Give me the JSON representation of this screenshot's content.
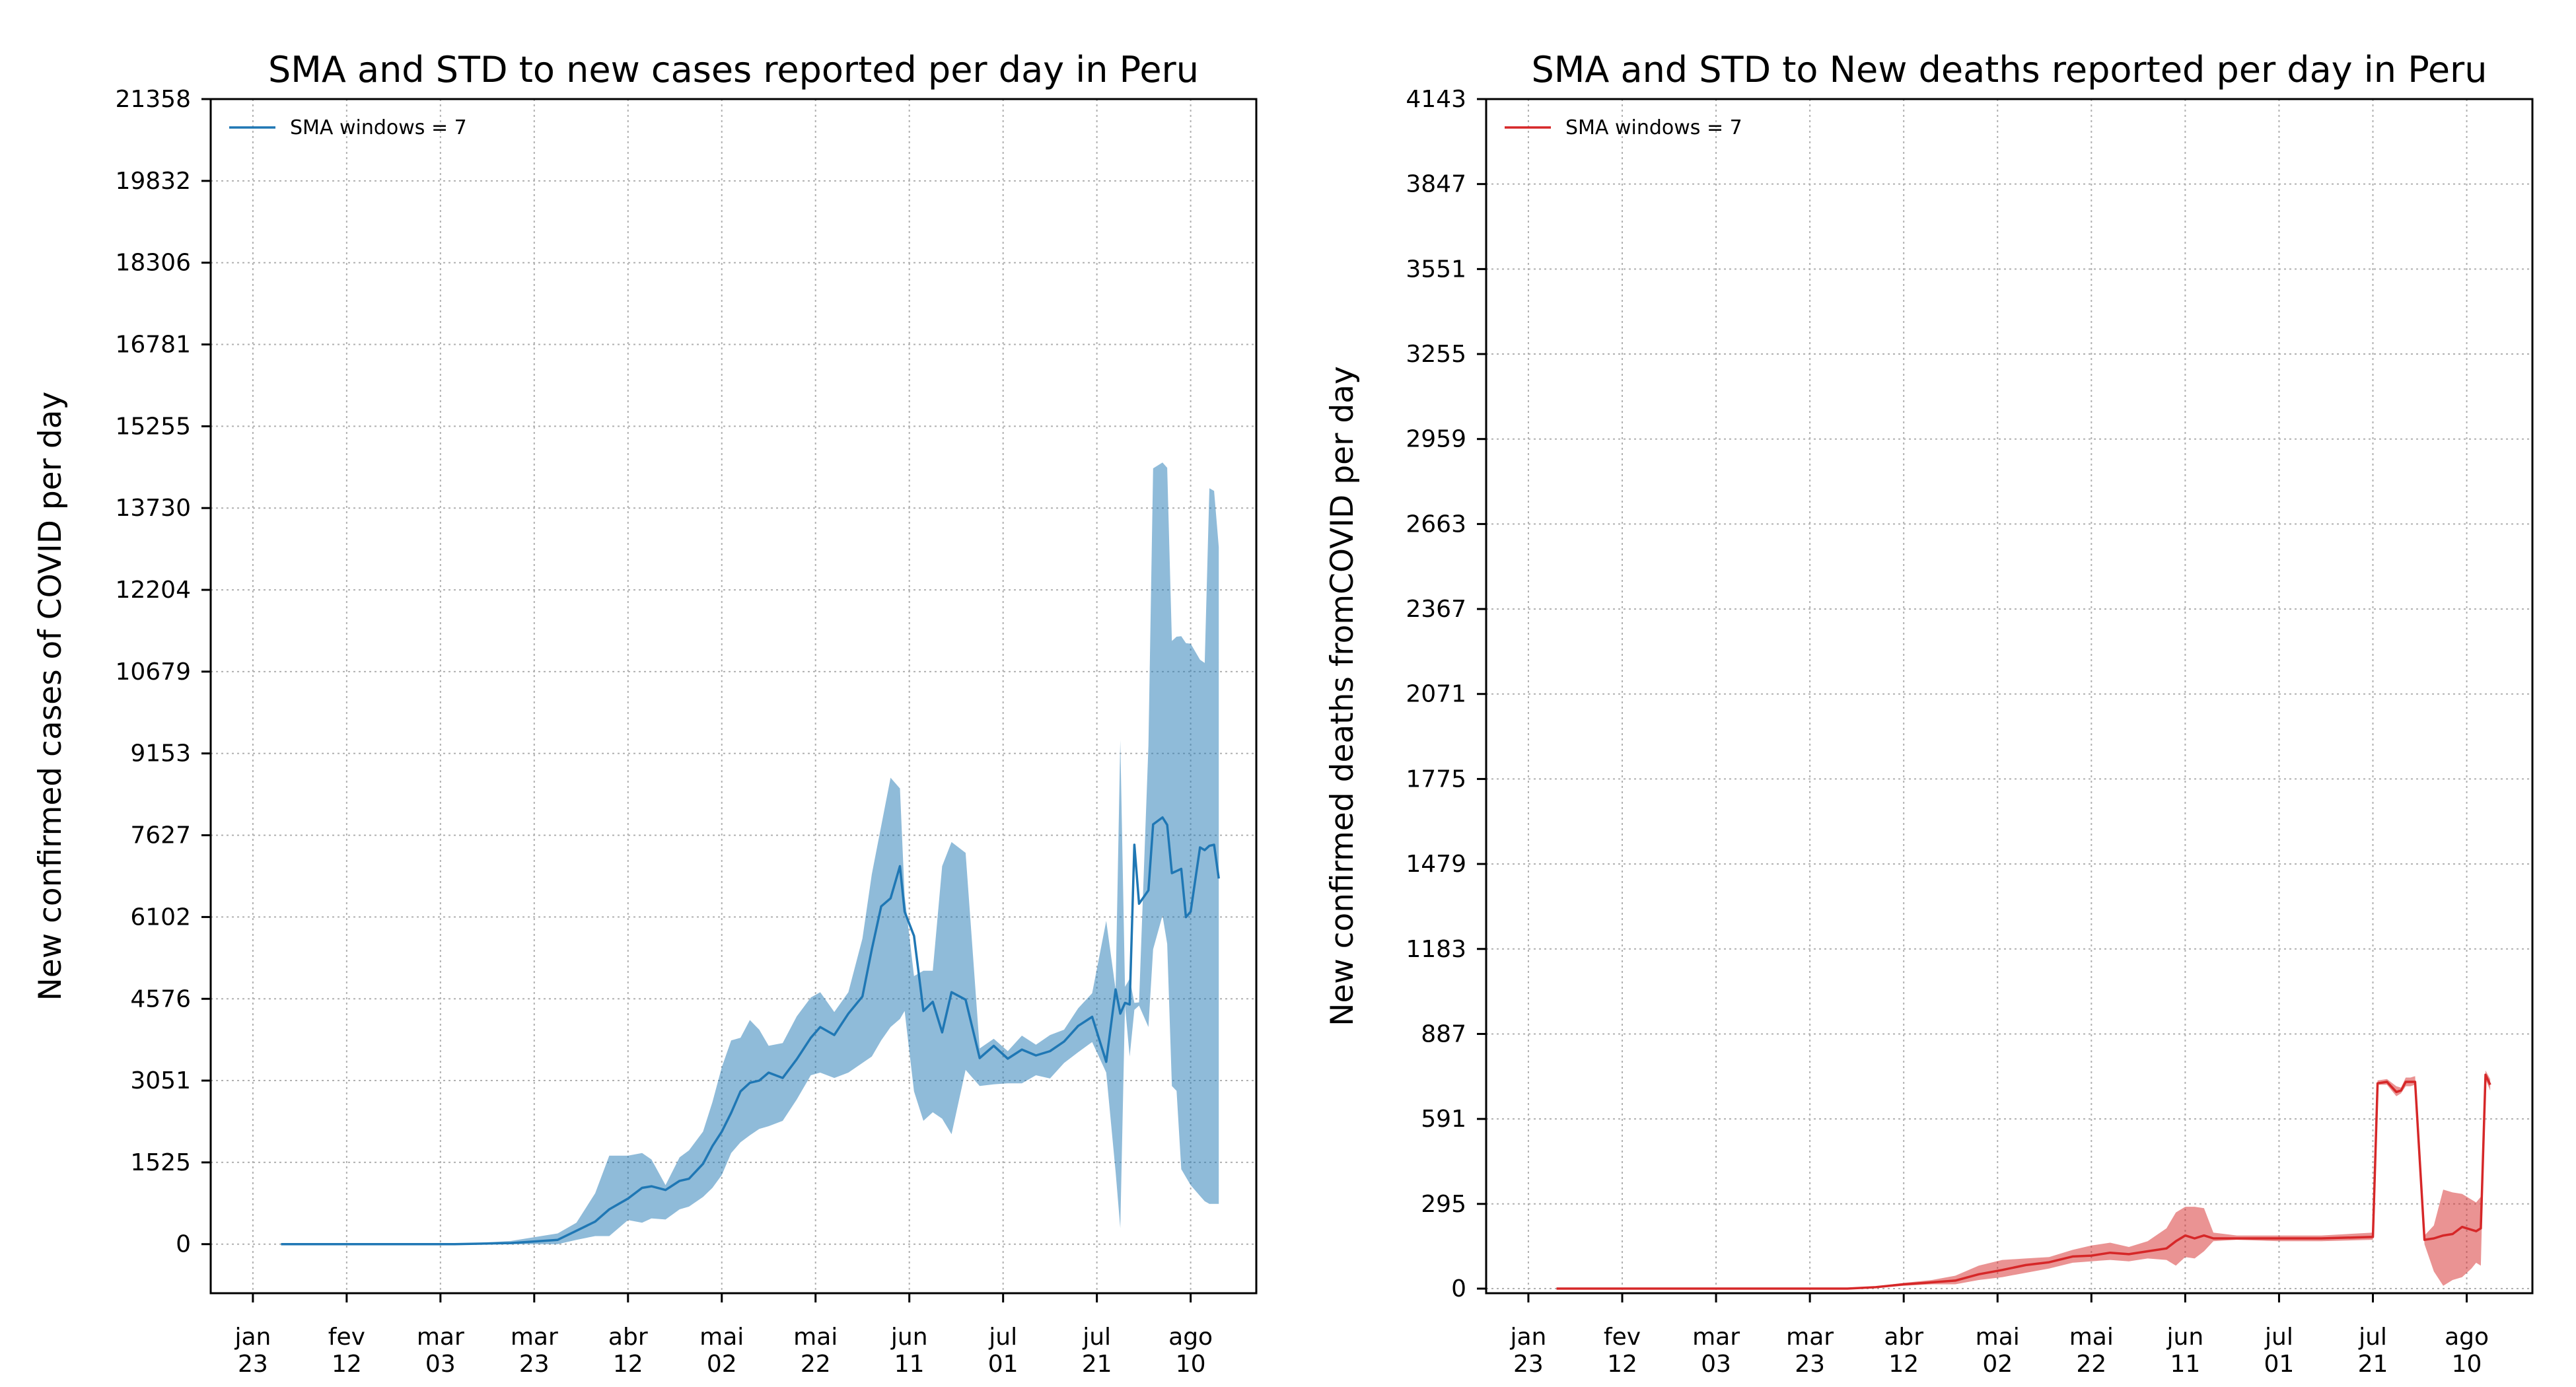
{
  "chart_data": [
    {
      "type": "line",
      "title": "SMA and STD to new cases reported per day in Peru",
      "xlabel": "",
      "ylabel": "New confirmed cases of COVID per day",
      "legend": "upper-left",
      "legend_entries": [
        "SMA windows = 7"
      ],
      "grid": true,
      "color": "#1f77b4",
      "band_color": "#1f77b4",
      "band_alpha": 0.5,
      "x_axis": "date",
      "xlim": [
        "2020-01-14",
        "2020-08-24"
      ],
      "ylim": [
        -915,
        21358
      ],
      "yticks": [
        0,
        1525,
        3051,
        4576,
        6102,
        7627,
        9153,
        10679,
        12204,
        13730,
        15255,
        16781,
        18306,
        19832,
        21358
      ],
      "xticks": [
        {
          "date": "2020-01-23",
          "line1": "jan",
          "line2": "23"
        },
        {
          "date": "2020-02-12",
          "line1": "fev",
          "line2": "12"
        },
        {
          "date": "2020-03-03",
          "line1": "mar",
          "line2": "03"
        },
        {
          "date": "2020-03-23",
          "line1": "mar",
          "line2": "23"
        },
        {
          "date": "2020-04-12",
          "line1": "abr",
          "line2": "12"
        },
        {
          "date": "2020-05-02",
          "line1": "mai",
          "line2": "02"
        },
        {
          "date": "2020-05-22",
          "line1": "mai",
          "line2": "22"
        },
        {
          "date": "2020-06-11",
          "line1": "jun",
          "line2": "11"
        },
        {
          "date": "2020-07-01",
          "line1": "jul",
          "line2": "01"
        },
        {
          "date": "2020-07-21",
          "line1": "jul",
          "line2": "21"
        },
        {
          "date": "2020-08-10",
          "line1": "ago",
          "line2": "10"
        }
      ],
      "series": [
        {
          "name": "SMA windows = 7",
          "x": [
            "2020-01-29",
            "2020-02-15",
            "2020-03-06",
            "2020-03-18",
            "2020-03-28",
            "2020-04-01",
            "2020-04-05",
            "2020-04-08",
            "2020-04-12",
            "2020-04-15",
            "2020-04-17",
            "2020-04-20",
            "2020-04-23",
            "2020-04-25",
            "2020-04-28",
            "2020-04-30",
            "2020-05-02",
            "2020-05-04",
            "2020-05-06",
            "2020-05-08",
            "2020-05-10",
            "2020-05-12",
            "2020-05-15",
            "2020-05-18",
            "2020-05-21",
            "2020-05-23",
            "2020-05-26",
            "2020-05-29",
            "2020-06-01",
            "2020-06-03",
            "2020-06-05",
            "2020-06-07",
            "2020-06-09",
            "2020-06-10",
            "2020-06-12",
            "2020-06-14",
            "2020-06-16",
            "2020-06-18",
            "2020-06-20",
            "2020-06-23",
            "2020-06-26",
            "2020-06-29",
            "2020-07-02",
            "2020-07-05",
            "2020-07-08",
            "2020-07-11",
            "2020-07-14",
            "2020-07-17",
            "2020-07-20",
            "2020-07-23",
            "2020-07-25",
            "2020-07-26",
            "2020-07-27",
            "2020-07-28",
            "2020-07-29",
            "2020-07-30",
            "2020-08-01",
            "2020-08-02",
            "2020-08-04",
            "2020-08-05",
            "2020-08-06",
            "2020-08-07",
            "2020-08-08",
            "2020-08-09",
            "2020-08-10",
            "2020-08-12",
            "2020-08-13",
            "2020-08-14",
            "2020-08-15",
            "2020-08-16"
          ],
          "values": [
            0,
            0,
            0,
            20,
            80,
            250,
            420,
            650,
            850,
            1050,
            1080,
            1010,
            1180,
            1220,
            1500,
            1830,
            2100,
            2450,
            2850,
            3010,
            3050,
            3200,
            3100,
            3450,
            3850,
            4050,
            3900,
            4300,
            4620,
            5500,
            6300,
            6450,
            7050,
            6200,
            5750,
            4350,
            4520,
            3950,
            4700,
            4560,
            3470,
            3700,
            3460,
            3630,
            3520,
            3600,
            3780,
            4070,
            4240,
            3400,
            4750,
            4300,
            4500,
            4470,
            7450,
            6350,
            6600,
            7830,
            7960,
            7820,
            6920,
            6960,
            7000,
            6100,
            6200,
            7400,
            7350,
            7430,
            7450,
            6820
          ]
        }
      ],
      "band": {
        "upper": [
          0,
          0,
          0,
          60,
          200,
          400,
          950,
          1650,
          1650,
          1700,
          1580,
          1100,
          1620,
          1750,
          2100,
          2650,
          3300,
          3800,
          3850,
          4180,
          4000,
          3700,
          3750,
          4250,
          4600,
          4700,
          4330,
          4700,
          5700,
          6900,
          7800,
          8700,
          8500,
          6500,
          5000,
          5100,
          5100,
          7050,
          7500,
          7300,
          3650,
          3830,
          3600,
          3890,
          3720,
          3900,
          4000,
          4400,
          4680,
          6030,
          4750,
          9400,
          4800,
          4950,
          4500,
          4510,
          9300,
          14470,
          14580,
          14480,
          11250,
          11330,
          11340,
          11210,
          11200,
          10900,
          10840,
          14100,
          14050,
          13000
        ],
        "lower": [
          0,
          0,
          0,
          0,
          0,
          80,
          150,
          150,
          450,
          400,
          480,
          460,
          650,
          700,
          880,
          1050,
          1290,
          1700,
          1900,
          2030,
          2150,
          2200,
          2300,
          2700,
          3150,
          3200,
          3100,
          3200,
          3380,
          3500,
          3800,
          4050,
          4200,
          4350,
          2850,
          2300,
          2460,
          2340,
          2050,
          3250,
          2950,
          2980,
          3000,
          3000,
          3150,
          3090,
          3380,
          3580,
          3770,
          3200,
          1350,
          300,
          4450,
          3500,
          4370,
          4450,
          4050,
          5500,
          6130,
          5600,
          2950,
          2860,
          1400,
          1250,
          1100,
          900,
          800,
          750,
          750,
          750
        ]
      }
    },
    {
      "type": "line",
      "title": "SMA and STD to New deaths reported per day in Peru",
      "xlabel": "",
      "ylabel": "New confirmed deaths fromCOVID per day",
      "legend": "upper-left",
      "legend_entries": [
        "SMA windows = 7"
      ],
      "grid": true,
      "color": "#d62728",
      "band_color": "#d62728",
      "band_alpha": 0.5,
      "x_axis": "date",
      "xlim": [
        "2020-01-14",
        "2020-08-24"
      ],
      "ylim": [
        -16,
        4143
      ],
      "yticks": [
        0,
        295,
        591,
        887,
        1183,
        1479,
        1775,
        2071,
        2367,
        2663,
        2959,
        3255,
        3551,
        3847,
        4143
      ],
      "xticks": [
        {
          "date": "2020-01-23",
          "line1": "jan",
          "line2": "23"
        },
        {
          "date": "2020-02-12",
          "line1": "fev",
          "line2": "12"
        },
        {
          "date": "2020-03-03",
          "line1": "mar",
          "line2": "03"
        },
        {
          "date": "2020-03-23",
          "line1": "mar",
          "line2": "23"
        },
        {
          "date": "2020-04-12",
          "line1": "abr",
          "line2": "12"
        },
        {
          "date": "2020-05-02",
          "line1": "mai",
          "line2": "02"
        },
        {
          "date": "2020-05-22",
          "line1": "mai",
          "line2": "22"
        },
        {
          "date": "2020-06-11",
          "line1": "jun",
          "line2": "11"
        },
        {
          "date": "2020-07-01",
          "line1": "jul",
          "line2": "01"
        },
        {
          "date": "2020-07-21",
          "line1": "jul",
          "line2": "21"
        },
        {
          "date": "2020-08-10",
          "line1": "ago",
          "line2": "10"
        }
      ],
      "series": [
        {
          "name": "SMA windows = 7",
          "x": [
            "2020-01-29",
            "2020-03-31",
            "2020-04-06",
            "2020-04-12",
            "2020-04-18",
            "2020-04-23",
            "2020-04-28",
            "2020-05-03",
            "2020-05-08",
            "2020-05-13",
            "2020-05-18",
            "2020-05-22",
            "2020-05-26",
            "2020-05-30",
            "2020-06-03",
            "2020-06-07",
            "2020-06-09",
            "2020-06-11",
            "2020-06-13",
            "2020-06-15",
            "2020-06-17",
            "2020-06-22",
            "2020-07-01",
            "2020-07-10",
            "2020-07-21",
            "2020-07-22",
            "2020-07-24",
            "2020-07-26",
            "2020-07-27",
            "2020-07-28",
            "2020-07-29",
            "2020-07-30",
            "2020-08-01",
            "2020-08-03",
            "2020-08-05",
            "2020-08-07",
            "2020-08-09",
            "2020-08-11",
            "2020-08-12",
            "2020-08-13",
            "2020-08-14",
            "2020-08-15"
          ],
          "values": [
            0,
            0,
            5,
            15,
            22,
            28,
            50,
            65,
            82,
            92,
            112,
            115,
            125,
            120,
            130,
            140,
            165,
            185,
            175,
            185,
            175,
            175,
            175,
            175,
            180,
            715,
            720,
            685,
            690,
            720,
            720,
            720,
            170,
            175,
            185,
            190,
            215,
            205,
            200,
            210,
            745,
            710
          ]
        }
      ],
      "band": {
        "upper": [
          0,
          0,
          8,
          20,
          30,
          45,
          80,
          100,
          105,
          110,
          135,
          150,
          160,
          145,
          165,
          210,
          265,
          285,
          285,
          280,
          195,
          185,
          185,
          185,
          195,
          725,
          730,
          705,
          700,
          735,
          735,
          740,
          185,
          220,
          345,
          335,
          330,
          310,
          300,
          320,
          760,
          730
        ],
        "lower": [
          0,
          0,
          2,
          10,
          15,
          15,
          30,
          40,
          55,
          70,
          90,
          95,
          100,
          95,
          105,
          100,
          80,
          110,
          105,
          130,
          165,
          170,
          165,
          165,
          170,
          710,
          710,
          670,
          680,
          705,
          705,
          710,
          155,
          60,
          10,
          30,
          40,
          70,
          90,
          80,
          730,
          690
        ]
      }
    }
  ]
}
